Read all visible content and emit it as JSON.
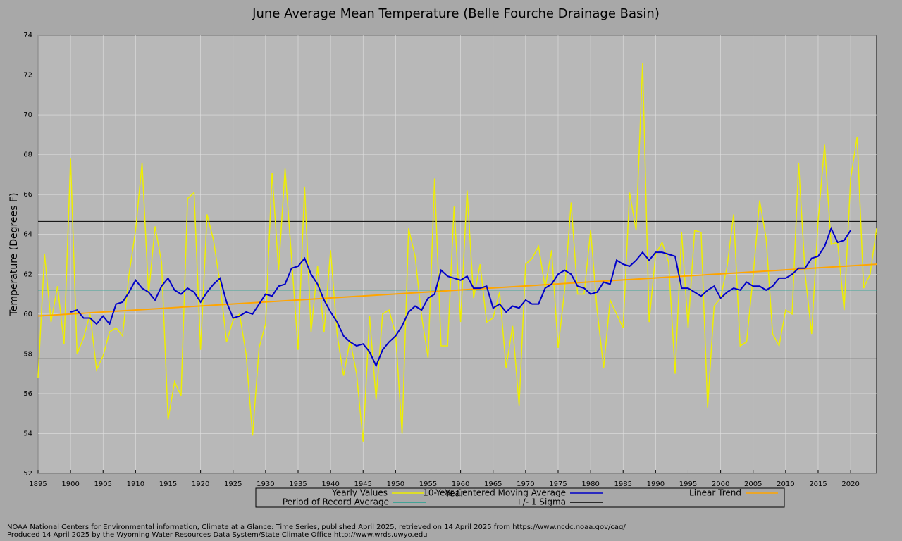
{
  "chart_data": {
    "type": "line",
    "title": "June Average Mean Temperature (Belle Fourche Drainage Basin)",
    "xlabel": "Year",
    "ylabel": "Temperature (Degrees F)",
    "x": [
      1895,
      1896,
      1897,
      1898,
      1899,
      1900,
      1901,
      1902,
      1903,
      1904,
      1905,
      1906,
      1907,
      1908,
      1909,
      1910,
      1911,
      1912,
      1913,
      1914,
      1915,
      1916,
      1917,
      1918,
      1919,
      1920,
      1921,
      1922,
      1923,
      1924,
      1925,
      1926,
      1927,
      1928,
      1929,
      1930,
      1931,
      1932,
      1933,
      1934,
      1935,
      1936,
      1937,
      1938,
      1939,
      1940,
      1941,
      1942,
      1943,
      1944,
      1945,
      1946,
      1947,
      1948,
      1949,
      1950,
      1951,
      1952,
      1953,
      1954,
      1955,
      1956,
      1957,
      1958,
      1959,
      1960,
      1961,
      1962,
      1963,
      1964,
      1965,
      1966,
      1967,
      1968,
      1969,
      1970,
      1971,
      1972,
      1973,
      1974,
      1975,
      1976,
      1977,
      1978,
      1979,
      1980,
      1981,
      1982,
      1983,
      1984,
      1985,
      1986,
      1987,
      1988,
      1989,
      1990,
      1991,
      1992,
      1993,
      1994,
      1995,
      1996,
      1997,
      1998,
      1999,
      2000,
      2001,
      2002,
      2003,
      2004,
      2005,
      2006,
      2007,
      2008,
      2009,
      2010,
      2011,
      2012,
      2013,
      2014,
      2015,
      2016,
      2017,
      2018,
      2019,
      2020,
      2021,
      2022,
      2023,
      2024
    ],
    "series": [
      {
        "name": "Yearly Values",
        "color": "#eeee00",
        "values": [
          56.8,
          63.0,
          59.6,
          61.4,
          58.5,
          67.8,
          58.0,
          58.8,
          60.0,
          57.2,
          57.9,
          59.1,
          59.3,
          58.9,
          62.0,
          64.2,
          67.6,
          61.0,
          64.4,
          62.6,
          54.7,
          56.6,
          55.9,
          65.8,
          66.1,
          58.2,
          65.0,
          63.7,
          61.5,
          58.6,
          59.7,
          60.0,
          58.0,
          53.9,
          58.3,
          59.5,
          67.1,
          62.2,
          67.3,
          62.8,
          58.2,
          66.4,
          59.1,
          62.4,
          59.1,
          63.2,
          59.0,
          56.9,
          58.7,
          57.0,
          53.6,
          59.9,
          55.7,
          60.0,
          60.2,
          59.0,
          54.0,
          64.3,
          62.9,
          59.9,
          57.8,
          66.8,
          58.4,
          58.4,
          65.4,
          59.6,
          66.2,
          60.8,
          62.5,
          59.6,
          59.8,
          61.1,
          57.3,
          59.4,
          55.4,
          62.5,
          62.8,
          63.4,
          61.3,
          63.2,
          58.3,
          61.2,
          65.6,
          61.0,
          61.0,
          64.2,
          60.2,
          57.3,
          60.7,
          60.0,
          59.3,
          66.1,
          64.2,
          72.6,
          59.6,
          63.0,
          63.6,
          62.6,
          57.0,
          64.1,
          59.3,
          64.2,
          64.1,
          55.3,
          60.4,
          60.8,
          62.4,
          65.0,
          58.4,
          58.6,
          61.9,
          65.7,
          63.8,
          59.0,
          58.4,
          60.2,
          60.0,
          67.6,
          62.0,
          59.0,
          64.7,
          68.5,
          63.5,
          63.6,
          60.2,
          66.8,
          68.9,
          61.3,
          62.0,
          64.3
        ]
      },
      {
        "name": "10-Year Centered Moving Average",
        "color": "#0000c8",
        "values": [
          null,
          null,
          null,
          null,
          null,
          60.1,
          60.2,
          59.8,
          59.8,
          59.5,
          59.9,
          59.5,
          60.5,
          60.6,
          61.1,
          61.7,
          61.3,
          61.1,
          60.7,
          61.4,
          61.8,
          61.2,
          61.0,
          61.3,
          61.1,
          60.6,
          61.1,
          61.5,
          61.8,
          60.6,
          59.8,
          59.9,
          60.1,
          60.0,
          60.5,
          61.0,
          60.9,
          61.4,
          61.5,
          62.3,
          62.4,
          62.8,
          62.0,
          61.5,
          60.7,
          60.1,
          59.6,
          58.9,
          58.6,
          58.4,
          58.5,
          58.1,
          57.4,
          58.2,
          58.6,
          58.9,
          59.4,
          60.1,
          60.4,
          60.2,
          60.8,
          61.0,
          62.2,
          61.9,
          61.8,
          61.7,
          61.9,
          61.3,
          61.3,
          61.4,
          60.3,
          60.5,
          60.1,
          60.4,
          60.3,
          60.7,
          60.5,
          60.5,
          61.3,
          61.5,
          62.0,
          62.2,
          62.0,
          61.4,
          61.3,
          61.0,
          61.1,
          61.6,
          61.5,
          62.7,
          62.5,
          62.4,
          62.7,
          63.1,
          62.7,
          63.1,
          63.1,
          63.0,
          62.9,
          61.3,
          61.3,
          61.1,
          60.9,
          61.2,
          61.4,
          60.8,
          61.1,
          61.3,
          61.2,
          61.6,
          61.4,
          61.4,
          61.2,
          61.4,
          61.8,
          61.8,
          62.0,
          62.3,
          62.3,
          62.8,
          62.9,
          63.4,
          64.3,
          63.6,
          63.7,
          64.2,
          null,
          null,
          null,
          null
        ]
      }
    ],
    "trend": {
      "name": "Linear Trend",
      "color": "#ffa500",
      "x": [
        1895,
        2024
      ],
      "values": [
        59.9,
        62.5
      ]
    },
    "average": {
      "name": "Period of Record Average",
      "color": "#20a090",
      "value": 61.2
    },
    "sigma": {
      "name": "+/- 1 Sigma",
      "color": "#000000",
      "values": [
        57.75,
        64.65
      ]
    },
    "xlim": [
      1895,
      2024
    ],
    "xticks": [
      1895,
      1900,
      1905,
      1910,
      1915,
      1920,
      1925,
      1930,
      1935,
      1940,
      1945,
      1950,
      1955,
      1960,
      1965,
      1970,
      1975,
      1980,
      1985,
      1990,
      1995,
      2000,
      2005,
      2010,
      2015,
      2020
    ],
    "ylim": [
      52,
      74
    ],
    "yticks": [
      52,
      54,
      56,
      58,
      60,
      62,
      64,
      66,
      68,
      70,
      72,
      74
    ],
    "grid": true,
    "footer": [
      "NOAA National Centers for Environmental information, Climate at a Glance: Time Series, published April 2025, retrieved on 14 April 2025 from https://www.ncdc.noaa.gov/cag/",
      "Produced 14 April 2025 by the Wyoming Water Resources Data System/State Climate Office http://www.wrds.uwyo.edu"
    ]
  }
}
